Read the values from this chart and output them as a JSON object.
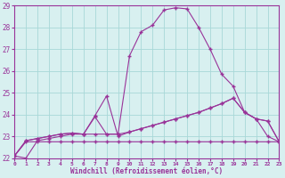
{
  "xlabel": "Windchill (Refroidissement éolien,°C)",
  "hours": [
    0,
    1,
    2,
    3,
    4,
    5,
    6,
    7,
    8,
    9,
    10,
    11,
    12,
    13,
    14,
    15,
    16,
    17,
    18,
    19,
    20,
    21,
    22,
    23
  ],
  "line1": [
    22.1,
    22.0,
    22.8,
    22.9,
    23.0,
    23.1,
    23.1,
    23.1,
    23.1,
    23.1,
    26.7,
    27.8,
    28.1,
    28.8,
    28.9,
    28.85,
    28.0,
    27.0,
    25.85,
    25.3,
    24.1,
    23.8,
    23.0,
    22.75
  ],
  "line2": [
    22.1,
    22.8,
    22.9,
    23.0,
    23.1,
    23.15,
    23.1,
    23.9,
    23.1,
    23.1,
    23.2,
    23.35,
    23.5,
    23.65,
    23.8,
    23.95,
    24.1,
    24.3,
    24.5,
    24.75,
    24.1,
    23.8,
    23.7,
    22.75
  ],
  "line3": [
    22.1,
    22.75,
    22.75,
    22.75,
    22.75,
    22.75,
    22.75,
    22.75,
    22.75,
    22.75,
    22.75,
    22.75,
    22.75,
    22.75,
    22.75,
    22.75,
    22.75,
    22.75,
    22.75,
    22.75,
    22.75,
    22.75,
    22.75,
    22.75
  ],
  "line4": [
    22.1,
    22.8,
    22.9,
    23.0,
    23.1,
    23.15,
    23.1,
    23.95,
    24.85,
    23.0,
    23.2,
    23.35,
    23.5,
    23.65,
    23.8,
    23.95,
    24.1,
    24.3,
    24.5,
    24.75,
    24.1,
    23.8,
    23.7,
    22.75
  ],
  "line_color": "#993399",
  "bg_color": "#d8f0f0",
  "grid_color": "#a8d8d8",
  "ylim": [
    22,
    29
  ],
  "xlim": [
    0,
    23
  ]
}
